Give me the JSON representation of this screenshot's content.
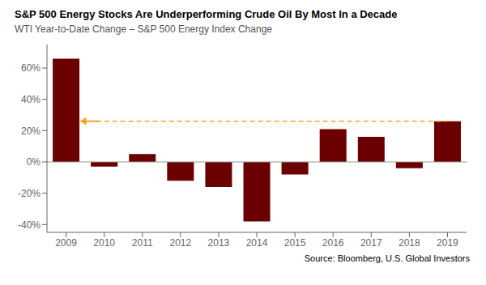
{
  "chart_data": {
    "type": "bar",
    "title": "S&P 500 Energy Stocks Are Underperforming Crude Oil By Most In a Decade",
    "subtitle": "WTI Year-to-Date Change – S&P 500 Energy Index Change",
    "source": "Source: Bloomberg, U.S. Global Investors",
    "categories": [
      "2009",
      "2010",
      "2011",
      "2012",
      "2013",
      "2014",
      "2015",
      "2016",
      "2017",
      "2018",
      "2019"
    ],
    "values": [
      66,
      -3,
      5,
      -12,
      -16,
      -38,
      -8,
      21,
      16,
      -4,
      26
    ],
    "color": "#6B0000",
    "ylim": [
      -45,
      75
    ],
    "yticks": [
      {
        "value": -40,
        "label": "-40%"
      },
      {
        "value": -20,
        "label": "-20%"
      },
      {
        "value": 0,
        "label": "0%"
      },
      {
        "value": 20,
        "label": "20%"
      },
      {
        "value": 40,
        "label": "40%"
      },
      {
        "value": 60,
        "label": "60%"
      }
    ],
    "grid": false,
    "annotations": [
      {
        "type": "hline",
        "y": 26,
        "color": "#F5A623",
        "line_style": "dashed",
        "marker": "arrow"
      }
    ]
  }
}
